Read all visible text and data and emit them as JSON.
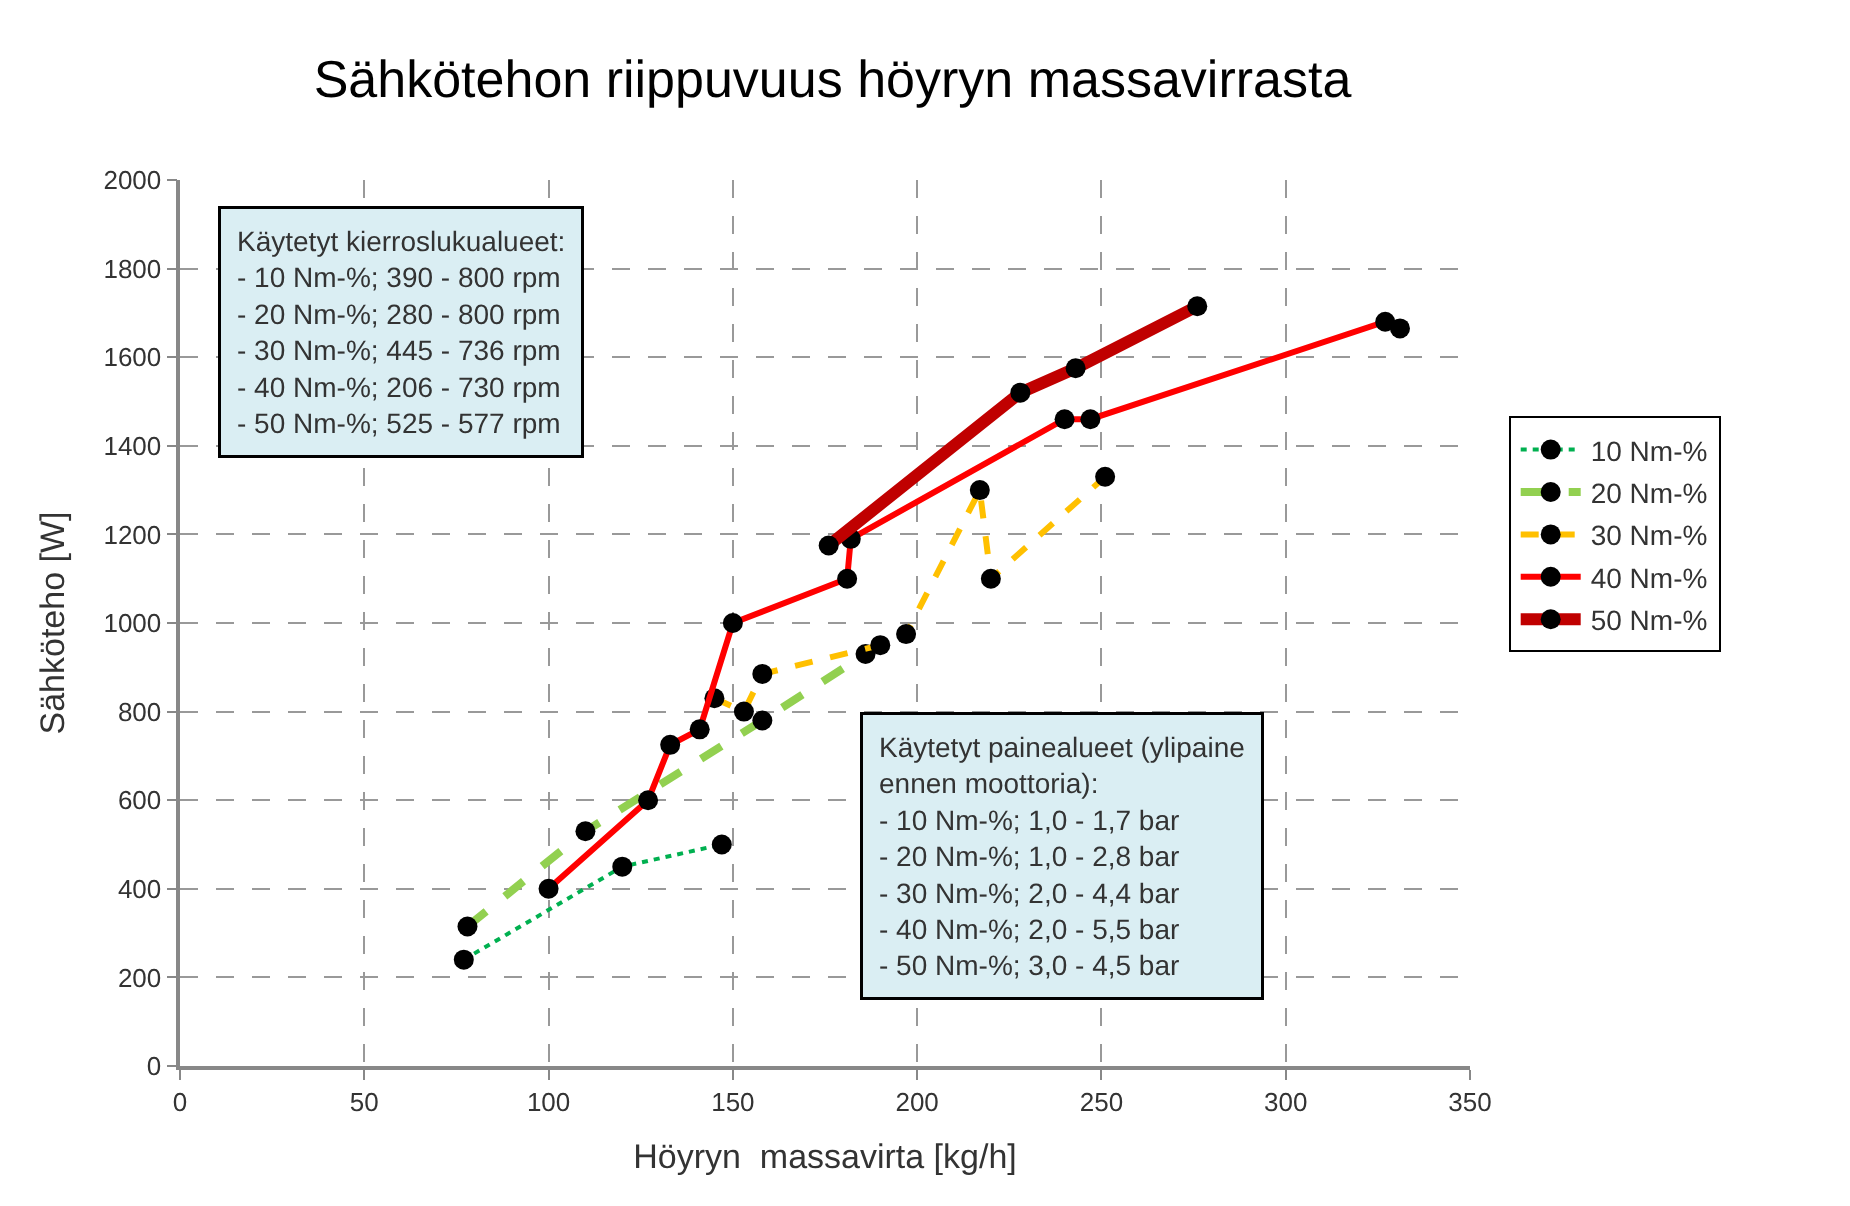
{
  "chart_data": {
    "type": "line",
    "title": "Sähkötehon riippuvuus höyryn massavirrasta",
    "xlabel": "Höyryn  massavirta [kg/h]",
    "ylabel": "Sähköteho [W]",
    "xlim": [
      0,
      350
    ],
    "xticks": [
      0,
      50,
      100,
      150,
      200,
      250,
      300,
      350
    ],
    "ylim": [
      0,
      2000
    ],
    "yticks": [
      0,
      200,
      400,
      600,
      800,
      1000,
      1200,
      1400,
      1600,
      1800,
      2000
    ],
    "grid": true,
    "legend": "right",
    "marker": "circle",
    "series": [
      {
        "name": "10 Nm-%",
        "color": "#00b050",
        "line_style": "dotted",
        "x": [
          77,
          120,
          147
        ],
        "values": [
          240,
          450,
          500
        ]
      },
      {
        "name": "20 Nm-%",
        "color": "#92d050",
        "line_style": "dashed",
        "x": [
          78,
          110,
          158,
          186
        ],
        "values": [
          315,
          530,
          780,
          930
        ]
      },
      {
        "name": "30 Nm-%",
        "color": "#ffc000",
        "line_style": "dashed",
        "x": [
          145,
          153,
          158,
          190,
          197,
          217,
          220,
          251
        ],
        "values": [
          830,
          800,
          885,
          950,
          975,
          1300,
          1100,
          1330
        ]
      },
      {
        "name": "40 Nm-%",
        "color": "#ff0000",
        "line_style": "solid",
        "x": [
          100,
          127,
          133,
          141,
          150,
          181,
          182,
          240,
          247,
          327,
          331
        ],
        "values": [
          400,
          600,
          725,
          760,
          1000,
          1100,
          1190,
          1460,
          1460,
          1680,
          1665
        ]
      },
      {
        "name": "50 Nm-%",
        "color": "#c00000",
        "line_style": "solid",
        "x": [
          176,
          228,
          243,
          276
        ],
        "values": [
          1175,
          1520,
          1575,
          1715
        ]
      }
    ],
    "annotations": [
      "Käytetyt kierroslukualueet:\n- 10 Nm-%; 390 - 800 rpm\n- 20 Nm-%; 280 - 800 rpm\n- 30 Nm-%; 445 - 736 rpm\n- 40 Nm-%; 206 - 730 rpm\n- 50 Nm-%; 525 - 577 rpm",
      "Käytetyt painealueet (ylipaine\nennen moottoria):\n- 10 Nm-%; 1,0 - 1,7 bar\n- 20 Nm-%; 1,0 - 2,8 bar\n- 30 Nm-%; 2,0 - 4,4 bar\n- 40 Nm-%; 2,0 - 5,5 bar\n- 50 Nm-%; 3,0 - 4,5 bar"
    ]
  }
}
